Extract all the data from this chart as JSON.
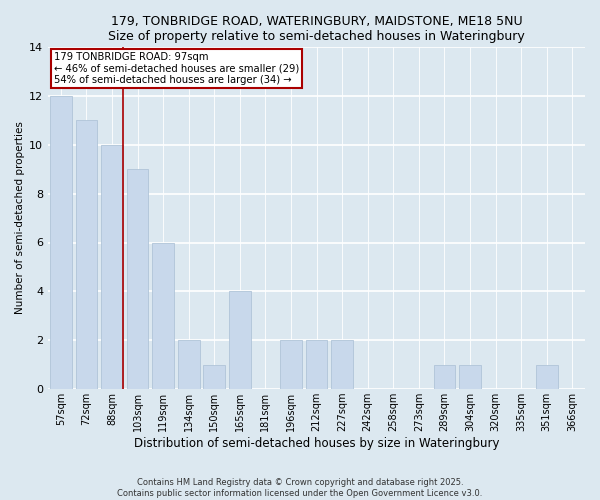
{
  "title1": "179, TONBRIDGE ROAD, WATERINGBURY, MAIDSTONE, ME18 5NU",
  "title2": "Size of property relative to semi-detached houses in Wateringbury",
  "xlabel": "Distribution of semi-detached houses by size in Wateringbury",
  "ylabel": "Number of semi-detached properties",
  "categories": [
    "57sqm",
    "72sqm",
    "88sqm",
    "103sqm",
    "119sqm",
    "134sqm",
    "150sqm",
    "165sqm",
    "181sqm",
    "196sqm",
    "212sqm",
    "227sqm",
    "242sqm",
    "258sqm",
    "273sqm",
    "289sqm",
    "304sqm",
    "320sqm",
    "335sqm",
    "351sqm",
    "366sqm"
  ],
  "values": [
    12,
    11,
    10,
    9,
    6,
    2,
    1,
    4,
    0,
    2,
    2,
    2,
    0,
    0,
    0,
    1,
    1,
    0,
    0,
    1,
    0
  ],
  "bar_color": "#c8d8eb",
  "bar_edge_color": "#b0c4d8",
  "property_bin_index": 2,
  "annotation_title": "179 TONBRIDGE ROAD: 97sqm",
  "annotation_line1": "← 46% of semi-detached houses are smaller (29)",
  "annotation_line2": "54% of semi-detached houses are larger (34) →",
  "vline_color": "#aa0000",
  "annotation_box_edge": "#aa0000",
  "ylim": [
    0,
    14
  ],
  "yticks": [
    0,
    2,
    4,
    6,
    8,
    10,
    12,
    14
  ],
  "footer1": "Contains HM Land Registry data © Crown copyright and database right 2025.",
  "footer2": "Contains public sector information licensed under the Open Government Licence v3.0.",
  "bg_color": "#dce8f0",
  "plot_bg_color": "#dce8f0"
}
